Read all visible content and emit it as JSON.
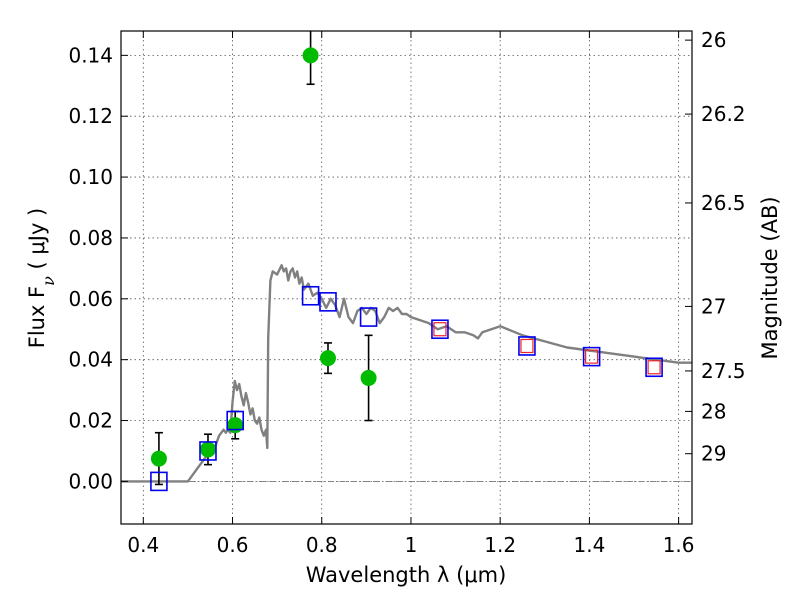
{
  "chart_data": {
    "type": "scatter",
    "xlabel": "Wavelength  λ (μm)",
    "ylabel": "Flux  F",
    "ylabel_subscript": "ν",
    "ylabel_unit": "  ( μJy )",
    "y2label": "Magnitude (AB)",
    "xlim": [
      0.35,
      1.63
    ],
    "ylim": [
      -0.014,
      0.148
    ],
    "grid": true,
    "x_ticks": [
      0.4,
      0.6,
      0.8,
      1.0,
      1.2,
      1.4,
      1.6
    ],
    "x_tick_labels": [
      "0.4",
      "0.6",
      "0.8",
      "1",
      "1.2",
      "1.4",
      "1.6"
    ],
    "y_ticks": [
      0.0,
      0.02,
      0.04,
      0.06,
      0.08,
      0.1,
      0.12,
      0.14
    ],
    "y_tick_labels": [
      "0.00",
      "0.02",
      "0.04",
      "0.06",
      "0.08",
      "0.10",
      "0.12",
      "0.14"
    ],
    "y2_ticks": [
      {
        "label": "26",
        "flux": 0.145
      },
      {
        "label": "26.2",
        "flux": 0.1207
      },
      {
        "label": "26.5",
        "flux": 0.0915
      },
      {
        "label": "27",
        "flux": 0.0575
      },
      {
        "label": "27.5",
        "flux": 0.0363
      },
      {
        "label": "28",
        "flux": 0.023
      },
      {
        "label": "29",
        "flux": 0.0091
      }
    ],
    "zero_line": 0.0,
    "series": [
      {
        "name": "observed",
        "marker": "circle",
        "color": "#00bb00",
        "points": [
          {
            "x": 0.435,
            "y": 0.0075,
            "err": 0.0085
          },
          {
            "x": 0.545,
            "y": 0.0105,
            "err": 0.005
          },
          {
            "x": 0.606,
            "y": 0.0185,
            "err": 0.0045
          },
          {
            "x": 0.775,
            "y": 0.14,
            "err": 0.0095
          },
          {
            "x": 0.814,
            "y": 0.0405,
            "err": 0.005
          },
          {
            "x": 0.905,
            "y": 0.034,
            "err": 0.014
          }
        ]
      },
      {
        "name": "model_synthetic",
        "marker": "square",
        "color": "#0000ee",
        "points": [
          {
            "x": 0.435,
            "y": 0.0
          },
          {
            "x": 0.545,
            "y": 0.01
          },
          {
            "x": 0.606,
            "y": 0.02
          },
          {
            "x": 0.775,
            "y": 0.061
          },
          {
            "x": 0.814,
            "y": 0.059
          },
          {
            "x": 0.905,
            "y": 0.054
          },
          {
            "x": 1.065,
            "y": 0.05
          },
          {
            "x": 1.26,
            "y": 0.0445
          },
          {
            "x": 1.405,
            "y": 0.041
          },
          {
            "x": 1.545,
            "y": 0.0375
          }
        ]
      },
      {
        "name": "model_nir",
        "marker": "square-small",
        "color": "#ee2222",
        "points": [
          {
            "x": 1.065,
            "y": 0.05
          },
          {
            "x": 1.26,
            "y": 0.0445
          },
          {
            "x": 1.405,
            "y": 0.041
          },
          {
            "x": 1.545,
            "y": 0.0375
          }
        ]
      },
      {
        "name": "sed_model",
        "type": "line",
        "color": "#808080",
        "x": [
          0.35,
          0.5,
          0.52,
          0.54,
          0.56,
          0.57,
          0.58,
          0.585,
          0.59,
          0.595,
          0.6,
          0.605,
          0.61,
          0.615,
          0.62,
          0.625,
          0.63,
          0.635,
          0.64,
          0.645,
          0.65,
          0.655,
          0.66,
          0.665,
          0.67,
          0.675,
          0.678,
          0.68,
          0.685,
          0.69,
          0.7,
          0.71,
          0.715,
          0.72,
          0.725,
          0.73,
          0.735,
          0.74,
          0.745,
          0.75,
          0.755,
          0.76,
          0.77,
          0.78,
          0.79,
          0.8,
          0.81,
          0.82,
          0.83,
          0.84,
          0.85,
          0.86,
          0.87,
          0.88,
          0.89,
          0.9,
          0.91,
          0.92,
          0.93,
          0.94,
          0.95,
          0.96,
          0.97,
          0.98,
          0.99,
          1.0,
          1.02,
          1.04,
          1.06,
          1.08,
          1.1,
          1.12,
          1.14,
          1.15,
          1.16,
          1.18,
          1.2,
          1.25,
          1.3,
          1.35,
          1.4,
          1.45,
          1.5,
          1.55,
          1.6,
          1.63
        ],
        "y": [
          0.0,
          0.0,
          0.004,
          0.008,
          0.011,
          0.015,
          0.017,
          0.016,
          0.017,
          0.016,
          0.026,
          0.033,
          0.03,
          0.032,
          0.028,
          0.025,
          0.029,
          0.026,
          0.022,
          0.024,
          0.02,
          0.019,
          0.021,
          0.017,
          0.015,
          0.017,
          0.011,
          0.047,
          0.066,
          0.069,
          0.068,
          0.071,
          0.069,
          0.07,
          0.066,
          0.069,
          0.07,
          0.067,
          0.069,
          0.065,
          0.067,
          0.063,
          0.065,
          0.061,
          0.062,
          0.06,
          0.057,
          0.06,
          0.058,
          0.054,
          0.06,
          0.054,
          0.052,
          0.056,
          0.057,
          0.055,
          0.057,
          0.056,
          0.052,
          0.054,
          0.057,
          0.056,
          0.057,
          0.055,
          0.055,
          0.054,
          0.053,
          0.052,
          0.05,
          0.051,
          0.049,
          0.049,
          0.048,
          0.047,
          0.049,
          0.05,
          0.051,
          0.048,
          0.046,
          0.044,
          0.043,
          0.042,
          0.041,
          0.04,
          0.039,
          0.039
        ]
      }
    ]
  }
}
